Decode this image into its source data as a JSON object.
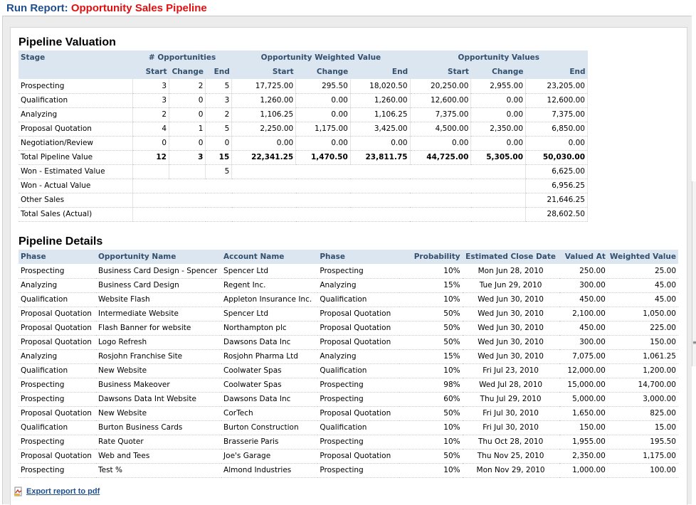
{
  "header": {
    "prefix": "Run Report:",
    "title": "Opportunity Sales Pipeline"
  },
  "valuation": {
    "heading": "Pipeline Valuation",
    "groups": {
      "stage": "Stage",
      "opps": "# Opportunities",
      "weighted": "Opportunity Weighted Value",
      "values": "Opportunity Values"
    },
    "subheads": {
      "start": "Start",
      "change": "Change",
      "end": "End"
    },
    "rows": [
      {
        "stage": "Prospecting",
        "o_start": "3",
        "o_change": "2",
        "o_end": "5",
        "w_start": "17,725.00",
        "w_change": "295.50",
        "w_end": "18,020.50",
        "v_start": "20,250.00",
        "v_change": "2,955.00",
        "v_end": "23,205.00"
      },
      {
        "stage": "Qualification",
        "o_start": "3",
        "o_change": "0",
        "o_end": "3",
        "w_start": "1,260.00",
        "w_change": "0.00",
        "w_end": "1,260.00",
        "v_start": "12,600.00",
        "v_change": "0.00",
        "v_end": "12,600.00"
      },
      {
        "stage": "Analyzing",
        "o_start": "2",
        "o_change": "0",
        "o_end": "2",
        "w_start": "1,106.25",
        "w_change": "0.00",
        "w_end": "1,106.25",
        "v_start": "7,375.00",
        "v_change": "0.00",
        "v_end": "7,375.00"
      },
      {
        "stage": "Proposal Quotation",
        "o_start": "4",
        "o_change": "1",
        "o_end": "5",
        "w_start": "2,250.00",
        "w_change": "1,175.00",
        "w_end": "3,425.00",
        "v_start": "4,500.00",
        "v_change": "2,350.00",
        "v_end": "6,850.00"
      },
      {
        "stage": "Negotiation/Review",
        "o_start": "0",
        "o_change": "0",
        "o_end": "0",
        "w_start": "0.00",
        "w_change": "0.00",
        "w_end": "0.00",
        "v_start": "0.00",
        "v_change": "0.00",
        "v_end": "0.00"
      }
    ],
    "total": {
      "stage": "Total Pipeline Value",
      "o_start": "12",
      "o_change": "3",
      "o_end": "15",
      "w_start": "22,341.25",
      "w_change": "1,470.50",
      "w_end": "23,811.75",
      "v_start": "44,725.00",
      "v_change": "5,305.00",
      "v_end": "50,030.00"
    },
    "won_est": {
      "label": "Won - Estimated Value",
      "count": "5",
      "value": "6,625.00"
    },
    "won_act": {
      "label": "Won - Actual Value",
      "value": "6,956.25"
    },
    "other": {
      "label": "Other Sales",
      "value": "21,646.25"
    },
    "total_sales": {
      "label": "Total Sales (Actual)",
      "value": "28,602.50"
    }
  },
  "details": {
    "heading": "Pipeline Details",
    "columns": [
      "Phase",
      "Opportunity Name",
      "Account Name",
      "Phase",
      "Probability",
      "Estimated Close Date",
      "Valued At",
      "Weighted Value"
    ],
    "rows": [
      [
        "Prospecting",
        "Business Card Design - Spencer",
        "Spencer Ltd",
        "Prospecting",
        "10%",
        "Mon Jun 28, 2010",
        "250.00",
        "25.00"
      ],
      [
        "Analyzing",
        "Business Card Design",
        "Regent Inc.",
        "Analyzing",
        "15%",
        "Tue Jun 29, 2010",
        "300.00",
        "45.00"
      ],
      [
        "Qualification",
        "Website Flash",
        "Appleton Insurance Inc.",
        "Qualification",
        "10%",
        "Wed Jun 30, 2010",
        "450.00",
        "45.00"
      ],
      [
        "Proposal Quotation",
        "Intermediate Website",
        "Spencer Ltd",
        "Proposal Quotation",
        "50%",
        "Wed Jun 30, 2010",
        "2,100.00",
        "1,050.00"
      ],
      [
        "Proposal Quotation",
        "Flash Banner for website",
        "Northampton plc",
        "Proposal Quotation",
        "50%",
        "Wed Jun 30, 2010",
        "450.00",
        "225.00"
      ],
      [
        "Proposal Quotation",
        "Logo Refresh",
        "Dawsons Data Inc",
        "Proposal Quotation",
        "50%",
        "Wed Jun 30, 2010",
        "300.00",
        "150.00"
      ],
      [
        "Analyzing",
        "Rosjohn Franchise Site",
        "Rosjohn Pharma Ltd",
        "Analyzing",
        "15%",
        "Wed Jun 30, 2010",
        "7,075.00",
        "1,061.25"
      ],
      [
        "Qualification",
        "New Website",
        "Coolwater Spas",
        "Qualification",
        "10%",
        "Fri Jul 23, 2010",
        "12,000.00",
        "1,200.00"
      ],
      [
        "Prospecting",
        "Business Makeover",
        "Coolwater Spas",
        "Prospecting",
        "98%",
        "Wed Jul 28, 2010",
        "15,000.00",
        "14,700.00"
      ],
      [
        "Prospecting",
        "Dawsons Data Int Website",
        "Dawsons Data Inc",
        "Prospecting",
        "60%",
        "Thu Jul 29, 2010",
        "5,000.00",
        "3,000.00"
      ],
      [
        "Proposal Quotation",
        "New Website",
        "CorTech",
        "Proposal Quotation",
        "50%",
        "Fri Jul 30, 2010",
        "1,650.00",
        "825.00"
      ],
      [
        "Qualification",
        "Burton Business Cards",
        "Burton Construction",
        "Qualification",
        "10%",
        "Fri Jul 30, 2010",
        "150.00",
        "15.00"
      ],
      [
        "Prospecting",
        "Rate Quoter",
        "Brasserie Paris",
        "Prospecting",
        "10%",
        "Thu Oct 28, 2010",
        "1,955.00",
        "195.50"
      ],
      [
        "Proposal Quotation",
        "Web and Tees",
        "Joe's Garage",
        "Proposal Quotation",
        "50%",
        "Thu Nov 25, 2010",
        "2,350.00",
        "1,175.00"
      ],
      [
        "Prospecting",
        "Test %",
        "Almond Industries",
        "Prospecting",
        "10%",
        "Mon Nov 29, 2010",
        "1,000.00",
        "100.00"
      ]
    ]
  },
  "export": {
    "label": "Export report to pdf",
    "icon": "pdf-icon"
  }
}
